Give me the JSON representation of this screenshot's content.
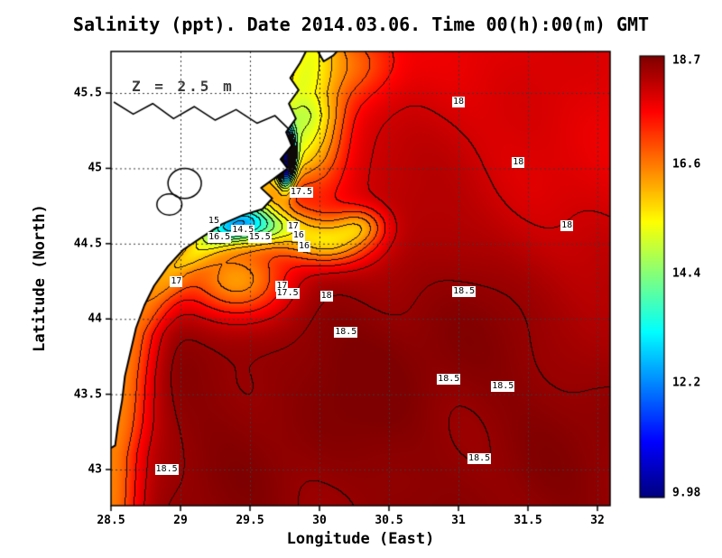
{
  "title": "Salinity (ppt). Date 2014.03.06. Time 00(h):00(m) GMT",
  "axes": {
    "x": {
      "label": "Longitude (East)",
      "range": [
        28.5,
        32.09
      ],
      "ticks": [
        {
          "label": "28.5",
          "value": 28.5
        },
        {
          "label": "29",
          "value": 29
        },
        {
          "label": "29.5",
          "value": 29.5
        },
        {
          "label": "30",
          "value": 30
        },
        {
          "label": "30.5",
          "value": 30.5
        },
        {
          "label": "31",
          "value": 31
        },
        {
          "label": "31.5",
          "value": 31.5
        },
        {
          "label": "32",
          "value": 32
        }
      ]
    },
    "y": {
      "label": "Latitude (North)",
      "range": [
        42.76,
        45.78
      ],
      "ticks": [
        {
          "label": "43",
          "value": 43
        },
        {
          "label": "43.5",
          "value": 43.5
        },
        {
          "label": "44",
          "value": 44
        },
        {
          "label": "44.5",
          "value": 44.5
        },
        {
          "label": "45",
          "value": 45
        },
        {
          "label": "45.5",
          "value": 45.5
        }
      ]
    }
  },
  "colorbar": {
    "min": 9.98,
    "max": 18.7,
    "colormap": "jet",
    "ticks": [
      {
        "label": "18.7",
        "value": 18.7
      },
      {
        "label": "16.6",
        "value": 16.6
      },
      {
        "label": "14.4",
        "value": 14.4
      },
      {
        "label": "12.2",
        "value": 12.2
      },
      {
        "label": "9.98",
        "value": 9.98
      }
    ]
  },
  "chart_data": {
    "type": "heatmap",
    "title": "Salinity (ppt). Date 2014.03.06. Time 00(h):00(m) GMT",
    "variable": "Salinity (ppt)",
    "date": "2014.03.06",
    "time": "00(h):00(m) GMT",
    "depth_label": "Z = 2.5 m",
    "xlabel": "Longitude (East)",
    "ylabel": "Latitude (North)",
    "x_range": [
      28.5,
      32.09
    ],
    "y_range": [
      42.76,
      45.78
    ],
    "value_range": [
      9.98,
      18.7
    ],
    "contour_interval": 0.5,
    "grid": true,
    "contour_labels": [
      {
        "text": "18",
        "lon": 31.0,
        "lat": 45.44
      },
      {
        "text": "18",
        "lon": 31.43,
        "lat": 45.04
      },
      {
        "text": "18",
        "lon": 31.78,
        "lat": 44.62
      },
      {
        "text": "17.5",
        "lon": 29.87,
        "lat": 44.84
      },
      {
        "text": "15",
        "lon": 29.24,
        "lat": 44.65
      },
      {
        "text": "14.5",
        "lon": 29.45,
        "lat": 44.59
      },
      {
        "text": "16.5",
        "lon": 29.28,
        "lat": 44.54
      },
      {
        "text": "15.5",
        "lon": 29.57,
        "lat": 44.54
      },
      {
        "text": "17",
        "lon": 29.81,
        "lat": 44.61
      },
      {
        "text": "16",
        "lon": 29.85,
        "lat": 44.55
      },
      {
        "text": "16",
        "lon": 29.89,
        "lat": 44.48
      },
      {
        "text": "17",
        "lon": 28.97,
        "lat": 44.25
      },
      {
        "text": "17",
        "lon": 29.73,
        "lat": 44.22
      },
      {
        "text": "17.5",
        "lon": 29.77,
        "lat": 44.17
      },
      {
        "text": "18",
        "lon": 30.05,
        "lat": 44.15
      },
      {
        "text": "18.5",
        "lon": 31.04,
        "lat": 44.18
      },
      {
        "text": "18.5",
        "lon": 30.19,
        "lat": 43.91
      },
      {
        "text": "18.5",
        "lon": 30.93,
        "lat": 43.6
      },
      {
        "text": "18.5",
        "lon": 31.32,
        "lat": 43.55
      },
      {
        "text": "18.5",
        "lon": 31.15,
        "lat": 43.07
      },
      {
        "text": "18.5",
        "lon": 28.9,
        "lat": 43.0
      }
    ],
    "field_model": {
      "base": 18.55,
      "contour_interval": 0.5,
      "coast_amp": 2.0,
      "coast_sigma": 0.22,
      "coast": [
        [
          42.76,
          28.49
        ],
        [
          43.1,
          28.5
        ],
        [
          43.3,
          28.54
        ],
        [
          43.6,
          28.58
        ],
        [
          43.9,
          28.64
        ],
        [
          44.1,
          28.74
        ],
        [
          44.3,
          28.88
        ],
        [
          44.5,
          29.16
        ],
        [
          44.65,
          29.38
        ],
        [
          44.75,
          29.5
        ],
        [
          44.85,
          29.55
        ],
        [
          44.95,
          29.65
        ],
        [
          45.05,
          29.72
        ],
        [
          45.2,
          29.76
        ],
        [
          45.35,
          29.8
        ],
        [
          45.5,
          29.78
        ],
        [
          45.65,
          29.84
        ],
        [
          45.78,
          29.9
        ]
      ],
      "gaussians": [
        {
          "x": 31.2,
          "y": 46.0,
          "sx": 1.87,
          "sy": 1.34,
          "a": -0.7
        },
        {
          "x": 32.3,
          "y": 44.8,
          "sx": 0.89,
          "sy": 0.77,
          "a": -0.5
        },
        {
          "x": 30.5,
          "y": 43.8,
          "sx": 1.1,
          "sy": 0.71,
          "a": 0.15
        },
        {
          "x": 29.76,
          "y": 45.08,
          "sx": 0.06,
          "sy": 0.18,
          "a": -7.5
        },
        {
          "x": 29.5,
          "y": 44.62,
          "sx": 0.35,
          "sy": 0.13,
          "a": -4.0
        },
        {
          "x": 30.05,
          "y": 44.5,
          "sx": 0.3,
          "sy": 0.15,
          "a": -2.2
        },
        {
          "x": 30.3,
          "y": 44.62,
          "sx": 0.18,
          "sy": 0.12,
          "a": -1.4
        },
        {
          "x": 29.98,
          "y": 45.3,
          "sx": 0.22,
          "sy": 0.4,
          "a": -1.8
        },
        {
          "x": 29.4,
          "y": 44.25,
          "sx": 0.38,
          "sy": 0.25,
          "a": -2.2
        },
        {
          "x": 29.95,
          "y": 44.75,
          "sx": 0.55,
          "sy": 0.4,
          "a": -0.5
        },
        {
          "x": 30.25,
          "y": 45.7,
          "sx": 0.3,
          "sy": 0.25,
          "a": -1.2
        }
      ]
    },
    "map": {
      "land": [
        [
          29.91,
          45.79
        ],
        [
          29.86,
          45.7
        ],
        [
          29.79,
          45.6
        ],
        [
          29.85,
          45.52
        ],
        [
          29.78,
          45.43
        ],
        [
          29.83,
          45.33
        ],
        [
          29.76,
          45.24
        ],
        [
          29.8,
          45.15
        ],
        [
          29.72,
          45.06
        ],
        [
          29.77,
          45.0
        ],
        [
          29.67,
          44.93
        ],
        [
          29.58,
          44.87
        ],
        [
          29.66,
          44.8
        ],
        [
          29.59,
          44.73
        ],
        [
          29.45,
          44.69
        ],
        [
          29.3,
          44.63
        ],
        [
          29.15,
          44.54
        ],
        [
          29.02,
          44.46
        ],
        [
          28.91,
          44.35
        ],
        [
          28.81,
          44.22
        ],
        [
          28.74,
          44.09
        ],
        [
          28.68,
          43.94
        ],
        [
          28.64,
          43.78
        ],
        [
          28.6,
          43.62
        ],
        [
          28.58,
          43.46
        ],
        [
          28.55,
          43.3
        ],
        [
          28.53,
          43.16
        ],
        [
          28.42,
          43.1
        ],
        [
          28.42,
          45.79
        ]
      ],
      "land_notch": [
        [
          29.98,
          45.79
        ],
        [
          30.03,
          45.71
        ],
        [
          30.1,
          45.75
        ],
        [
          30.14,
          45.79
        ]
      ],
      "river": [
        [
          28.52,
          45.44
        ],
        [
          28.66,
          45.36
        ],
        [
          28.8,
          45.43
        ],
        [
          28.95,
          45.33
        ],
        [
          29.1,
          45.41
        ],
        [
          29.25,
          45.32
        ],
        [
          29.4,
          45.39
        ],
        [
          29.55,
          45.3
        ],
        [
          29.68,
          45.35
        ],
        [
          29.78,
          45.26
        ]
      ],
      "lagoons": [
        {
          "cx": 29.03,
          "cy": 44.9,
          "rx": 0.12,
          "ry": 0.1
        },
        {
          "cx": 28.92,
          "cy": 44.76,
          "rx": 0.09,
          "ry": 0.07
        }
      ]
    }
  }
}
